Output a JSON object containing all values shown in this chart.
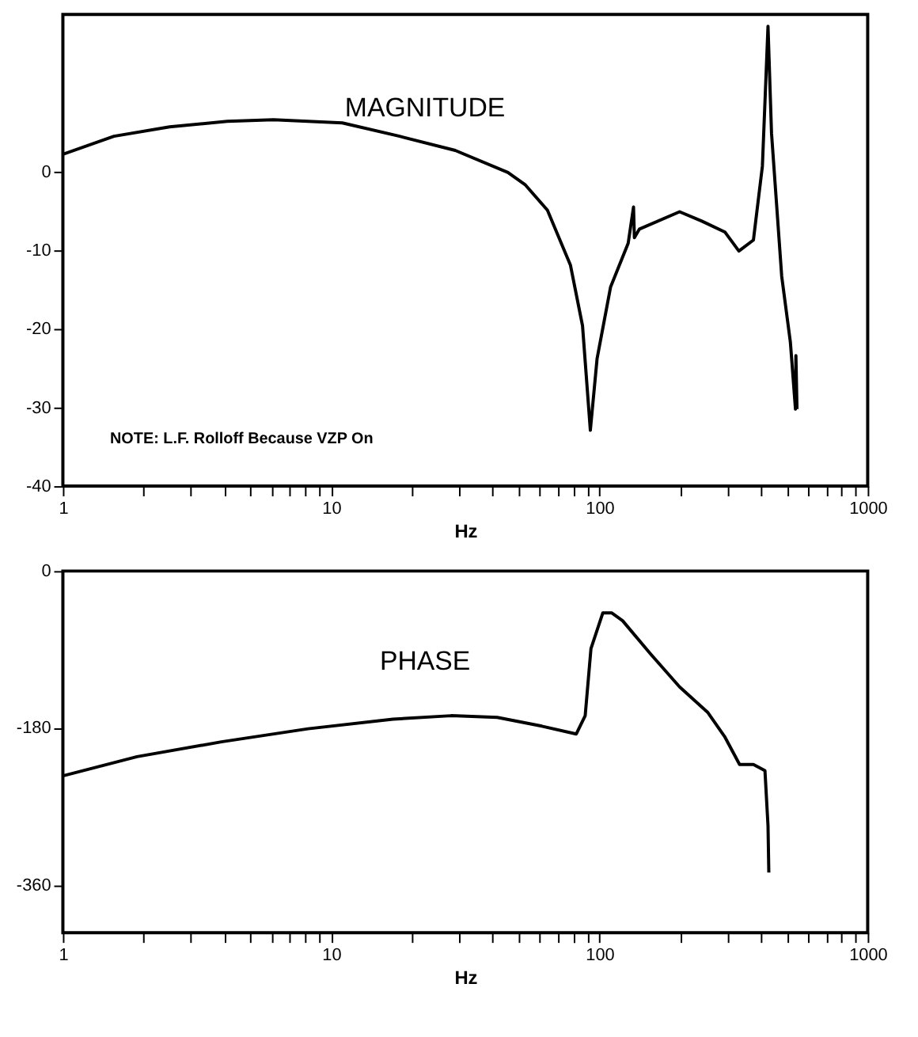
{
  "chart_data": [
    {
      "type": "line",
      "title": "MAGNITUDE",
      "xlabel": "Hz",
      "annotations": [
        "NOTE:   L.F. Rolloff Because VZP On"
      ],
      "x": [
        1,
        1.55,
        2.5,
        4.1,
        6.1,
        11,
        18,
        29,
        45.6,
        53,
        64,
        78,
        86.5,
        92.5,
        98,
        110,
        128,
        134,
        135,
        141,
        199,
        241,
        294,
        331,
        375,
        405,
        425,
        438,
        478,
        515,
        538,
        540,
        545
      ],
      "series": [
        {
          "color": "#000000",
          "values": [
            2.2,
            4.5,
            5.7,
            6.4,
            6.6,
            6.2,
            4.5,
            2.7,
            -0.1,
            -1.7,
            -4.9,
            -11.9,
            -19.6,
            -32.9,
            -23.8,
            -14.7,
            -9.1,
            -4.5,
            -8.4,
            -7.3,
            -5.1,
            -6.3,
            -7.7,
            -10.1,
            -8.7,
            0.7,
            18.5,
            4.9,
            -13.3,
            -21.7,
            -30.2,
            -23.4,
            -30.2
          ]
        }
      ],
      "xlim": [
        1,
        1000
      ],
      "ylim": [
        -40,
        20
      ],
      "xticks": [
        1,
        {
          "value": 2,
          "label": null
        },
        {
          "value": 3,
          "label": null
        },
        {
          "value": 4,
          "label": null
        },
        {
          "value": 5,
          "label": null
        },
        {
          "value": 6,
          "label": null
        },
        {
          "value": 7,
          "label": null
        },
        {
          "value": 8,
          "label": null
        },
        {
          "value": 9,
          "label": null
        },
        10,
        {
          "value": 20,
          "label": null
        },
        {
          "value": 30,
          "label": null
        },
        {
          "value": 40,
          "label": null
        },
        {
          "value": 50,
          "label": null
        },
        {
          "value": 60,
          "label": null
        },
        {
          "value": 70,
          "label": null
        },
        {
          "value": 80,
          "label": null
        },
        {
          "value": 90,
          "label": null
        },
        100,
        {
          "value": 200,
          "label": null
        },
        {
          "value": 300,
          "label": null
        },
        {
          "value": 400,
          "label": null
        },
        {
          "value": 500,
          "label": null
        },
        {
          "value": 600,
          "label": null
        },
        {
          "value": 700,
          "label": null
        },
        {
          "value": 800,
          "label": null
        },
        {
          "value": 900,
          "label": null
        },
        1000
      ],
      "yticks": [
        -40,
        -30,
        -20,
        -10,
        0
      ],
      "log": "x",
      "grid": false,
      "line_style": "solid",
      "marker": "none"
    },
    {
      "type": "line",
      "title": "PHASE",
      "xlabel": "Hz",
      "x": [
        1,
        1.89,
        3.9,
        8.2,
        17,
        28,
        41.6,
        61,
        82,
        88.5,
        93,
        103,
        111,
        122,
        155,
        199,
        253,
        293,
        333,
        375,
        414,
        425,
        428
      ],
      "series": [
        {
          "color": "#000000",
          "values": [
            -235,
            -213,
            -196,
            -181,
            -170,
            -166,
            -168,
            -178,
            -187,
            -166,
            -89,
            -48,
            -48,
            -57,
            -95,
            -133,
            -162,
            -190,
            -222,
            -222,
            -229,
            -292,
            -346
          ]
        }
      ],
      "xlim": [
        1,
        1000
      ],
      "ylim": [
        -415,
        0
      ],
      "xticks": [
        1,
        {
          "value": 2,
          "label": null
        },
        {
          "value": 3,
          "label": null
        },
        {
          "value": 4,
          "label": null
        },
        {
          "value": 5,
          "label": null
        },
        {
          "value": 6,
          "label": null
        },
        {
          "value": 7,
          "label": null
        },
        {
          "value": 8,
          "label": null
        },
        {
          "value": 9,
          "label": null
        },
        10,
        {
          "value": 20,
          "label": null
        },
        {
          "value": 30,
          "label": null
        },
        {
          "value": 40,
          "label": null
        },
        {
          "value": 50,
          "label": null
        },
        {
          "value": 60,
          "label": null
        },
        {
          "value": 70,
          "label": null
        },
        {
          "value": 80,
          "label": null
        },
        {
          "value": 90,
          "label": null
        },
        100,
        {
          "value": 200,
          "label": null
        },
        {
          "value": 300,
          "label": null
        },
        {
          "value": 400,
          "label": null
        },
        {
          "value": 500,
          "label": null
        },
        {
          "value": 600,
          "label": null
        },
        {
          "value": 700,
          "label": null
        },
        {
          "value": 800,
          "label": null
        },
        {
          "value": 900,
          "label": null
        },
        1000
      ],
      "yticks": [
        -360,
        -180,
        0
      ],
      "log": "x",
      "grid": false,
      "line_style": "solid",
      "marker": "none"
    }
  ]
}
